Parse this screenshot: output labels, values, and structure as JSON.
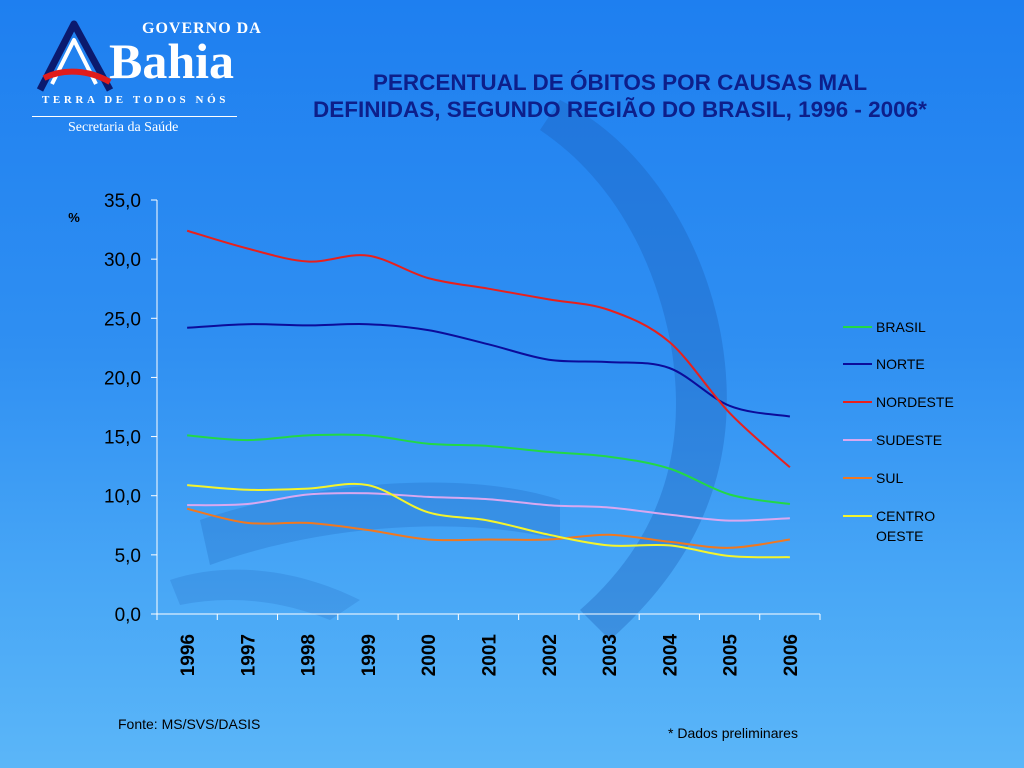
{
  "logo": {
    "top_text": "GOVERNO DA",
    "main_text": "Bahia",
    "tagline": "TERRA DE TODOS NÓS",
    "department": "Secretaria da Saúde"
  },
  "chart_data": {
    "type": "line",
    "title_lines": [
      "PERCENTUAL DE ÓBITOS POR CAUSAS MAL",
      "DEFINIDAS, SEGUNDO REGIÃO DO BRASIL, 1996 - 2006*"
    ],
    "ylabel": "%",
    "ylim": [
      0,
      35
    ],
    "yticks": [
      "0,0",
      "5,0",
      "10,0",
      "15,0",
      "20,0",
      "25,0",
      "30,0",
      "35,0"
    ],
    "categories": [
      "1996",
      "1997",
      "1998",
      "1999",
      "2000",
      "2001",
      "2002",
      "2003",
      "2004",
      "2005",
      "2006"
    ],
    "grid": false,
    "legend_position": "right",
    "series": [
      {
        "name": "BRASIL",
        "color": "#22d847",
        "values": [
          15.1,
          14.7,
          15.1,
          15.1,
          14.4,
          14.2,
          13.7,
          13.3,
          12.3,
          10.1,
          9.3
        ]
      },
      {
        "name": "NORTE",
        "color": "#0c0c9a",
        "values": [
          24.2,
          24.5,
          24.4,
          24.5,
          24.0,
          22.8,
          21.5,
          21.3,
          20.8,
          17.6,
          16.7
        ]
      },
      {
        "name": "NORDESTE",
        "color": "#e8201c",
        "values": [
          32.4,
          30.9,
          29.8,
          30.3,
          28.4,
          27.5,
          26.6,
          25.7,
          23.0,
          17.0,
          12.4
        ]
      },
      {
        "name": "SUDESTE",
        "color": "#d9a8f0",
        "values": [
          9.2,
          9.3,
          10.1,
          10.2,
          9.9,
          9.7,
          9.2,
          9.0,
          8.4,
          7.9,
          8.1
        ]
      },
      {
        "name": "SUL",
        "color": "#f07820",
        "values": [
          8.9,
          7.7,
          7.7,
          7.1,
          6.3,
          6.3,
          6.3,
          6.7,
          6.1,
          5.6,
          6.3
        ]
      },
      {
        "name": "CENTRO\nOESTE",
        "color": "#f4f42c",
        "values": [
          10.9,
          10.5,
          10.6,
          10.9,
          8.6,
          7.9,
          6.7,
          5.8,
          5.8,
          4.9,
          4.8
        ]
      }
    ]
  },
  "footer": {
    "source": "Fonte: MS/SVS/DASIS",
    "note": "* Dados preliminares"
  }
}
